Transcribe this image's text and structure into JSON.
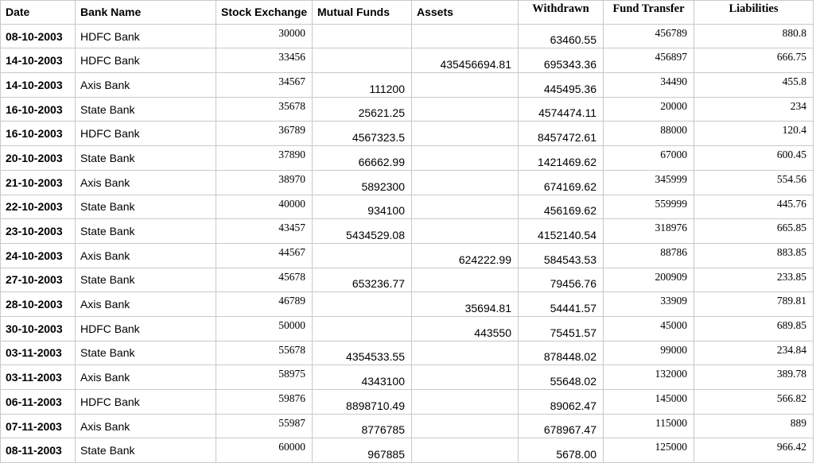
{
  "table": {
    "headers": {
      "date": "Date",
      "bank": "Bank Name",
      "stock": "Stock Exchange",
      "mutual": "Mutual Funds",
      "assets": "Assets",
      "withdrawn": "Withdrawn",
      "transfer": "Fund Transfer",
      "liabilities": "Liabilities"
    },
    "rows": [
      {
        "date": "08-10-2003",
        "bank": "HDFC Bank",
        "stock": "30000",
        "mutual": "",
        "assets": "",
        "withdrawn": "63460.55",
        "transfer": "456789",
        "liabilities": "880.8"
      },
      {
        "date": "14-10-2003",
        "bank": "HDFC Bank",
        "stock": "33456",
        "mutual": "",
        "assets": "435456694.81",
        "withdrawn": "695343.36",
        "transfer": "456897",
        "liabilities": "666.75"
      },
      {
        "date": "14-10-2003",
        "bank": "Axis Bank",
        "stock": "34567",
        "mutual": "111200",
        "assets": "",
        "withdrawn": "445495.36",
        "transfer": "34490",
        "liabilities": "455.8"
      },
      {
        "date": "16-10-2003",
        "bank": "State Bank",
        "stock": "35678",
        "mutual": "25621.25",
        "assets": "",
        "withdrawn": "4574474.11",
        "transfer": "20000",
        "liabilities": "234"
      },
      {
        "date": "16-10-2003",
        "bank": "HDFC Bank",
        "stock": "36789",
        "mutual": "4567323.5",
        "assets": "",
        "withdrawn": "8457472.61",
        "transfer": "88000",
        "liabilities": "120.4"
      },
      {
        "date": "20-10-2003",
        "bank": "State Bank",
        "stock": "37890",
        "mutual": "66662.99",
        "assets": "",
        "withdrawn": "1421469.62",
        "transfer": "67000",
        "liabilities": "600.45"
      },
      {
        "date": "21-10-2003",
        "bank": "Axis Bank",
        "stock": "38970",
        "mutual": "5892300",
        "assets": "",
        "withdrawn": "674169.62",
        "transfer": "345999",
        "liabilities": "554.56"
      },
      {
        "date": "22-10-2003",
        "bank": "State Bank",
        "stock": "40000",
        "mutual": "934100",
        "assets": "",
        "withdrawn": "456169.62",
        "transfer": "559999",
        "liabilities": "445.76"
      },
      {
        "date": "23-10-2003",
        "bank": "State Bank",
        "stock": "43457",
        "mutual": "5434529.08",
        "assets": "",
        "withdrawn": "4152140.54",
        "transfer": "318976",
        "liabilities": "665.85"
      },
      {
        "date": "24-10-2003",
        "bank": "Axis Bank",
        "stock": "44567",
        "mutual": "",
        "assets": "624222.99",
        "withdrawn": "584543.53",
        "transfer": "88786",
        "liabilities": "883.85"
      },
      {
        "date": "27-10-2003",
        "bank": "State Bank",
        "stock": "45678",
        "mutual": "653236.77",
        "assets": "",
        "withdrawn": "79456.76",
        "transfer": "200909",
        "liabilities": "233.85"
      },
      {
        "date": "28-10-2003",
        "bank": "Axis Bank",
        "stock": "46789",
        "mutual": "",
        "assets": "35694.81",
        "withdrawn": "54441.57",
        "transfer": "33909",
        "liabilities": "789.81"
      },
      {
        "date": "30-10-2003",
        "bank": "HDFC Bank",
        "stock": "50000",
        "mutual": "",
        "assets": "443550",
        "withdrawn": "75451.57",
        "transfer": "45000",
        "liabilities": "689.85"
      },
      {
        "date": "03-11-2003",
        "bank": "State Bank",
        "stock": "55678",
        "mutual": "4354533.55",
        "assets": "",
        "withdrawn": "878448.02",
        "transfer": "99000",
        "liabilities": "234.84"
      },
      {
        "date": "03-11-2003",
        "bank": "Axis Bank",
        "stock": "58975",
        "mutual": "4343100",
        "assets": "",
        "withdrawn": "55648.02",
        "transfer": "132000",
        "liabilities": "389.78"
      },
      {
        "date": "06-11-2003",
        "bank": "HDFC Bank",
        "stock": "59876",
        "mutual": "8898710.49",
        "assets": "",
        "withdrawn": "89062.47",
        "transfer": "145000",
        "liabilities": "566.82"
      },
      {
        "date": "07-11-2003",
        "bank": "Axis Bank",
        "stock": "55987",
        "mutual": "8776785",
        "assets": "",
        "withdrawn": "678967.47",
        "transfer": "115000",
        "liabilities": "889"
      },
      {
        "date": "08-11-2003",
        "bank": "State Bank",
        "stock": "60000",
        "mutual": "967885",
        "assets": "",
        "withdrawn": "5678.00",
        "transfer": "125000",
        "liabilities": "966.42"
      }
    ]
  }
}
